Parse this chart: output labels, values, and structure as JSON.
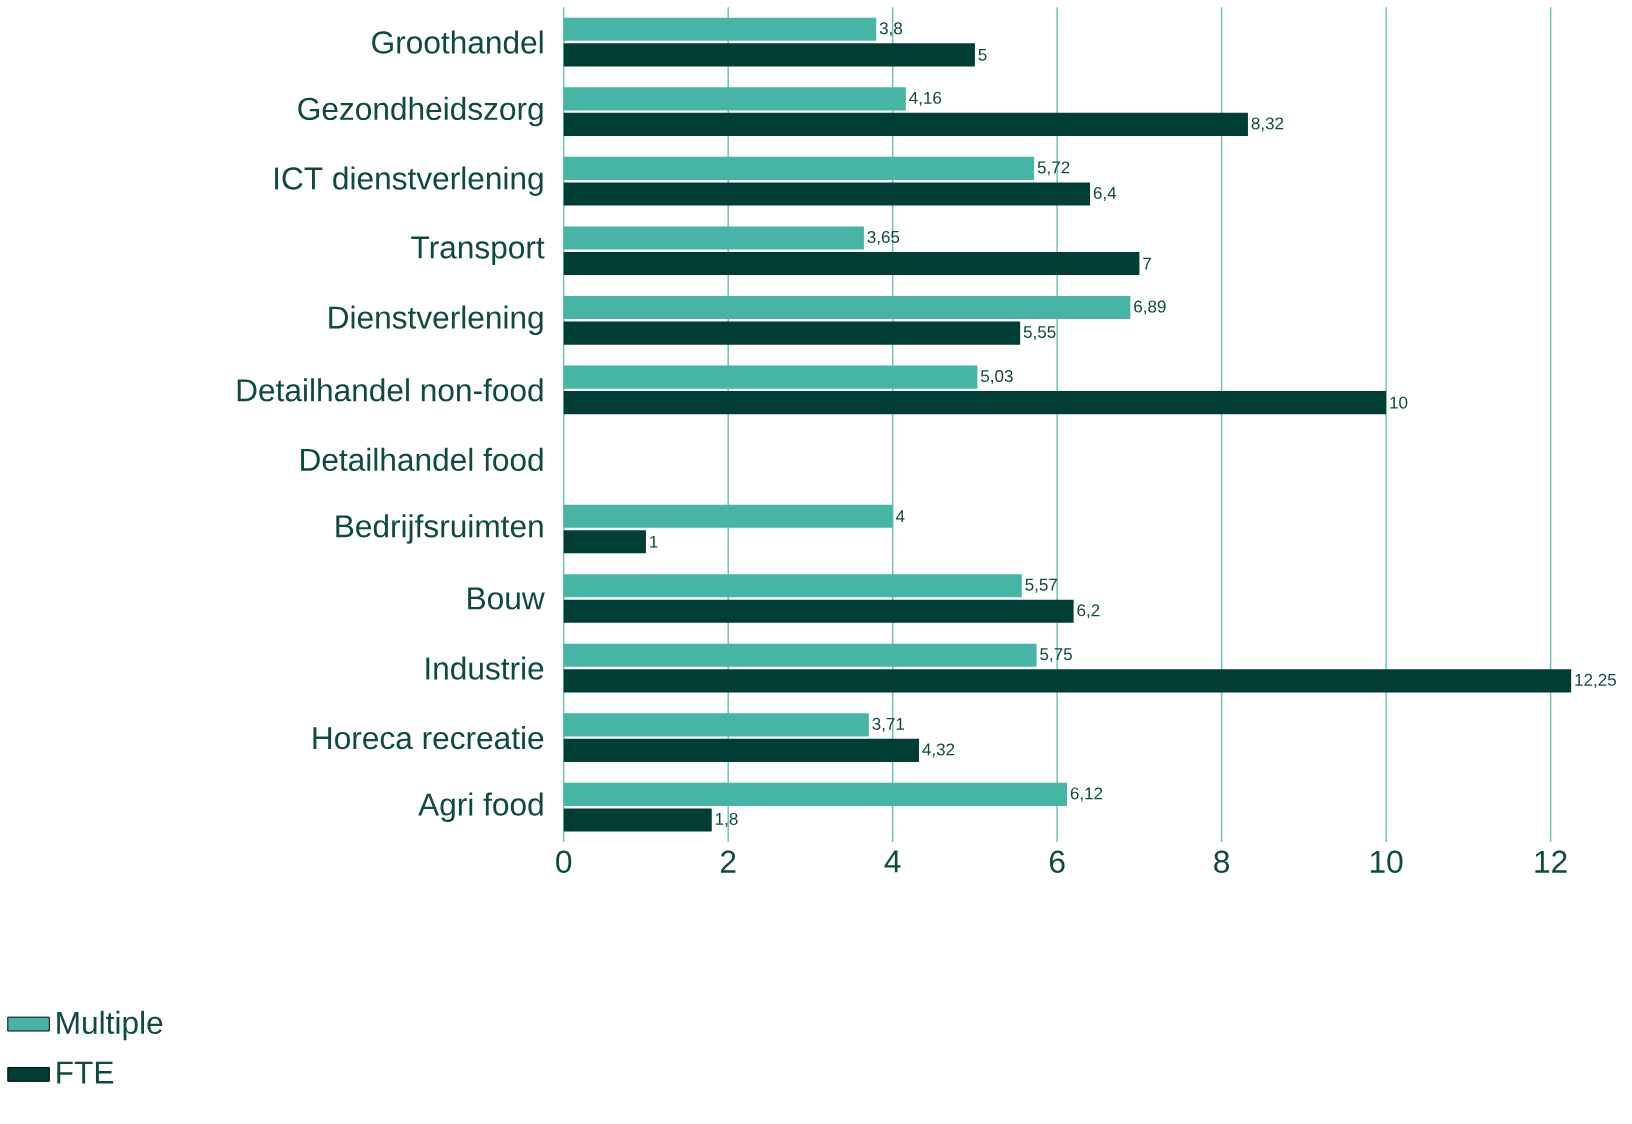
{
  "chart_data": {
    "type": "bar",
    "orientation": "horizontal",
    "categories": [
      "Groothandel",
      "Gezondheidszorg",
      "ICT dienstverlening",
      "Transport",
      "Dienstverlening",
      "Detailhandel non-food",
      "Detailhandel food",
      "Bedrijfsruimten",
      "Bouw",
      "Industrie",
      "Horeca recreatie",
      "Agri food"
    ],
    "series": [
      {
        "name": "Multiple",
        "color": "#47b5a5",
        "values": [
          3.8,
          4.16,
          5.72,
          3.65,
          6.89,
          5.03,
          null,
          4,
          5.57,
          5.75,
          3.71,
          6.12
        ],
        "value_labels": [
          "3,8",
          "4,16",
          "5,72",
          "3,65",
          "6,89",
          "5,03",
          null,
          "4",
          "5,57",
          "5,75",
          "3,71",
          "6,12"
        ]
      },
      {
        "name": "FTE",
        "color": "#003d35",
        "values": [
          5,
          8.32,
          6.4,
          7,
          5.55,
          10,
          null,
          1,
          6.2,
          12.25,
          4.32,
          1.8
        ],
        "value_labels": [
          "5",
          "8,32",
          "6,4",
          "7",
          "5,55",
          "10",
          null,
          "1",
          "6,2",
          "12,25",
          "4,32",
          "1,8"
        ]
      }
    ],
    "xlim": [
      0,
      12.25
    ],
    "xticks": [
      0,
      2,
      4,
      6,
      8,
      10,
      12
    ],
    "grid": "x",
    "legend": "bottom left"
  }
}
